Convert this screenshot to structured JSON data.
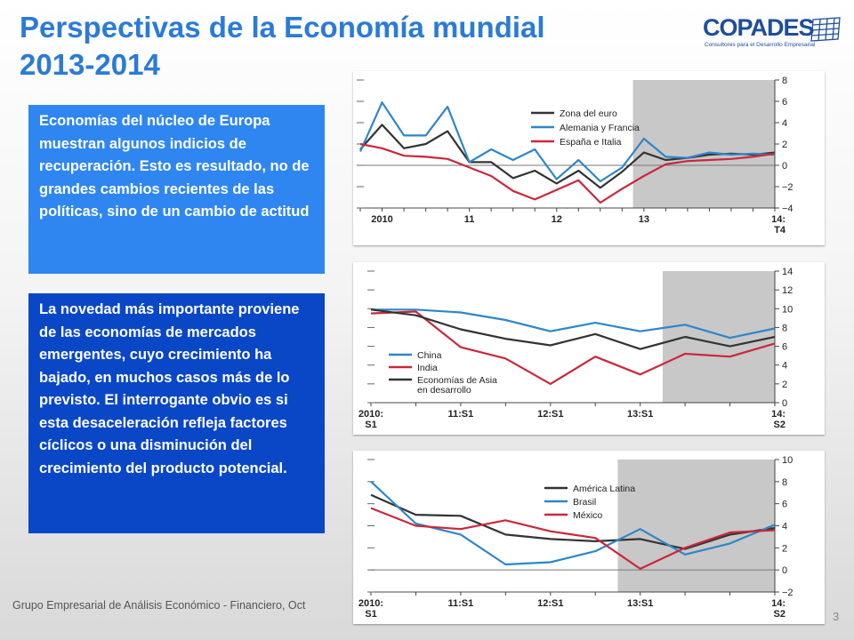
{
  "slide": {
    "title_line1": "Perspectivas de la Economía mundial",
    "title_line2": "2013-2014",
    "logo_text": "COPADES",
    "logo_subtitle": "Consultores para el Desarrollo Empresarial",
    "box1_text": "Economías del núcleo de Europa muestran algunos indicios de recuperación. Esto es resultado, no de grandes cambios recientes de las políticas, sino de un cambio de actitud",
    "box2_text": "La novedad más importante proviene de las economías de mercados emergentes, cuyo crecimiento ha bajado, en muchos casos más de lo previsto. El interrogante obvio es si esta desaceleración refleja factores cíclicos o una disminución del crecimiento del producto potencial.",
    "footer_text": "Grupo Empresarial de Análisis Económico - Financiero, Oct",
    "page_number": "3",
    "colors": {
      "title": "#2b7bd6",
      "box1": "#2f86f0",
      "box2": "#0a47c7",
      "forecast_shade": "#c8c8c8"
    }
  },
  "chart_data": [
    {
      "type": "line",
      "x": [
        "2010:T1",
        "T2",
        "T3",
        "T4",
        "2011:T1",
        "T2",
        "T3",
        "T4",
        "2012:T1",
        "T2",
        "T3",
        "T4",
        "2013:T1",
        "T2",
        "T3",
        "T4",
        "2014:T1",
        "T2",
        "T3",
        "T4"
      ],
      "xtick_labels": [
        "2010",
        "11",
        "12",
        "13",
        "14:\nT4"
      ],
      "yticks": [
        -4,
        -2,
        0,
        2,
        4,
        6,
        8
      ],
      "ylim": [
        -4,
        8
      ],
      "forecast_start": "2013:T2",
      "series": [
        {
          "name": "Zona del euro",
          "color": "#333333",
          "values": [
            1.5,
            3.8,
            1.6,
            2.0,
            3.2,
            0.3,
            0.3,
            -1.2,
            -0.5,
            -1.7,
            -0.5,
            -2.1,
            -0.6,
            1.2,
            0.5,
            0.7,
            1.0,
            1.1,
            1.0,
            1.2
          ]
        },
        {
          "name": "Alemania y Francia",
          "color": "#2e86c9",
          "values": [
            1.3,
            5.9,
            2.8,
            2.8,
            5.5,
            0.3,
            1.5,
            0.5,
            1.5,
            -1.3,
            0.5,
            -1.5,
            -0.2,
            2.5,
            0.8,
            0.7,
            1.2,
            1.0,
            1.1,
            1.0
          ]
        },
        {
          "name": "España e Italia",
          "color": "#c8283c",
          "values": [
            2.0,
            1.6,
            0.9,
            0.8,
            0.6,
            -0.2,
            -1.0,
            -2.4,
            -3.2,
            -2.3,
            -1.4,
            -3.5,
            -2.2,
            -1.0,
            0.1,
            0.4,
            0.5,
            0.6,
            0.8,
            1.1
          ]
        }
      ]
    },
    {
      "type": "line",
      "x": [
        "2010:S1",
        "S2",
        "2011:S1",
        "S2",
        "2012:S1",
        "S2",
        "2013:S1",
        "S2",
        "2014:S1",
        "S2"
      ],
      "xtick_labels": [
        "2010:\nS1",
        "11:S1",
        "12:S1",
        "13:S1",
        "14:\nS2"
      ],
      "yticks": [
        0,
        2,
        4,
        6,
        8,
        10,
        12,
        14
      ],
      "ylim": [
        0,
        14
      ],
      "forecast_start": "2013:S2",
      "series": [
        {
          "name": "China",
          "color": "#2e86c9",
          "values": [
            9.9,
            9.9,
            9.6,
            8.8,
            7.6,
            8.5,
            7.6,
            8.3,
            6.9,
            7.9
          ]
        },
        {
          "name": "India",
          "color": "#c8283c",
          "values": [
            9.5,
            9.7,
            5.9,
            4.7,
            2.0,
            4.9,
            3.0,
            5.2,
            4.9,
            6.3
          ]
        },
        {
          "name": "Economías de Asia en desarrollo",
          "color": "#333333",
          "values": [
            9.9,
            9.3,
            7.8,
            6.8,
            6.1,
            7.3,
            5.7,
            7.0,
            6.0,
            7.0
          ]
        }
      ]
    },
    {
      "type": "line",
      "x": [
        "2010:S1",
        "S2",
        "2011:S1",
        "S2",
        "2012:S1",
        "S2",
        "2013:S1",
        "S2",
        "2014:S1",
        "S2"
      ],
      "xtick_labels": [
        "2010:\nS1",
        "11:S1",
        "12:S1",
        "13:S1",
        "14:\nS2"
      ],
      "yticks": [
        -2,
        0,
        2,
        4,
        6,
        8,
        10
      ],
      "ylim": [
        -2,
        10
      ],
      "forecast_start": "2013:S1",
      "series": [
        {
          "name": "América Latina",
          "color": "#333333",
          "values": [
            6.8,
            5.0,
            4.9,
            3.2,
            2.8,
            2.6,
            2.8,
            1.9,
            3.2,
            3.8
          ]
        },
        {
          "name": "Brasil",
          "color": "#2e86c9",
          "values": [
            8.0,
            4.2,
            3.2,
            0.5,
            0.7,
            1.7,
            3.7,
            1.4,
            2.4,
            4.1
          ]
        },
        {
          "name": "México",
          "color": "#c8283c",
          "values": [
            5.6,
            4.0,
            3.7,
            4.5,
            3.5,
            2.9,
            0.1,
            2.0,
            3.4,
            3.6
          ]
        }
      ]
    }
  ]
}
